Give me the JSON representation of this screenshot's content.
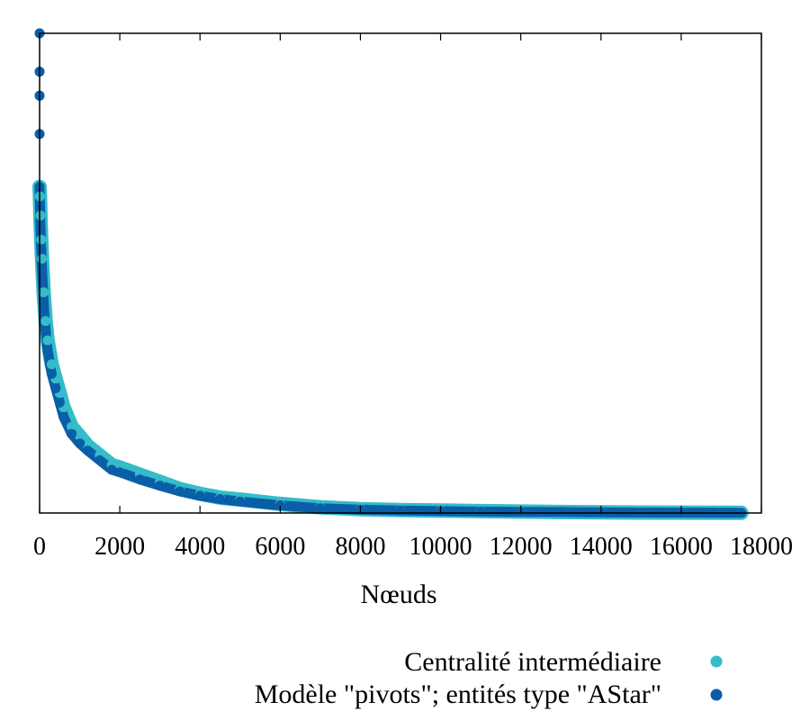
{
  "chart_data": {
    "type": "scatter",
    "title": "",
    "xlabel": "Nœuds",
    "ylabel": "",
    "xlim": [
      0,
      18000
    ],
    "x_ticks": [
      0,
      2000,
      4000,
      6000,
      8000,
      10000,
      12000,
      14000,
      16000,
      18000
    ],
    "y_tick_labels_shown": false,
    "grid": false,
    "legend_position": "bottom-right",
    "y_scale_note": "relative units; 0 = bottom axis, 1 = top of plot",
    "ylim": [
      0,
      1
    ],
    "series": [
      {
        "name": "Centralité intermédiaire",
        "color": "#35bcc9",
        "x": [
          0,
          0,
          0,
          0,
          0,
          10,
          20,
          40,
          60,
          100,
          150,
          200,
          300,
          400,
          500,
          600,
          800,
          1000,
          1200,
          1500,
          1800,
          2000,
          2500,
          3000,
          3500,
          4000,
          4500,
          5000,
          6000,
          7000,
          8000,
          9000,
          10000,
          11000,
          12000,
          13000,
          14000,
          15000,
          16000,
          17000,
          17500
        ],
        "y": [
          1.0,
          0.92,
          0.87,
          0.79,
          0.68,
          0.66,
          0.62,
          0.57,
          0.53,
          0.46,
          0.4,
          0.36,
          0.31,
          0.28,
          0.25,
          0.22,
          0.18,
          0.16,
          0.14,
          0.12,
          0.1,
          0.095,
          0.08,
          0.065,
          0.05,
          0.04,
          0.032,
          0.028,
          0.019,
          0.012,
          0.008,
          0.006,
          0.005,
          0.004,
          0.003,
          0.002,
          0.0015,
          0.001,
          0.0008,
          0.0005,
          0.0003
        ]
      },
      {
        "name": "Modèle \"pivots\"; entités type \"AStar\"",
        "color": "#0a5ea8",
        "x": [
          0,
          0,
          0,
          0,
          0,
          10,
          20,
          40,
          60,
          100,
          150,
          200,
          300,
          400,
          500,
          600,
          800,
          1000,
          1200,
          1500,
          1800,
          2000,
          2500,
          3000,
          3500,
          4000,
          4500,
          5000,
          6000,
          7000,
          8000,
          9000,
          10000,
          11000,
          12000,
          13000,
          14000,
          15000,
          16000,
          17000,
          17500
        ],
        "y": [
          1.0,
          0.92,
          0.87,
          0.79,
          0.68,
          0.64,
          0.6,
          0.55,
          0.51,
          0.44,
          0.38,
          0.34,
          0.29,
          0.26,
          0.23,
          0.2,
          0.165,
          0.145,
          0.13,
          0.11,
          0.09,
          0.085,
          0.07,
          0.057,
          0.045,
          0.036,
          0.029,
          0.024,
          0.016,
          0.01,
          0.007,
          0.005,
          0.004,
          0.003,
          0.0025,
          0.002,
          0.0015,
          0.001,
          0.0007,
          0.0004,
          0.0002
        ]
      }
    ]
  }
}
